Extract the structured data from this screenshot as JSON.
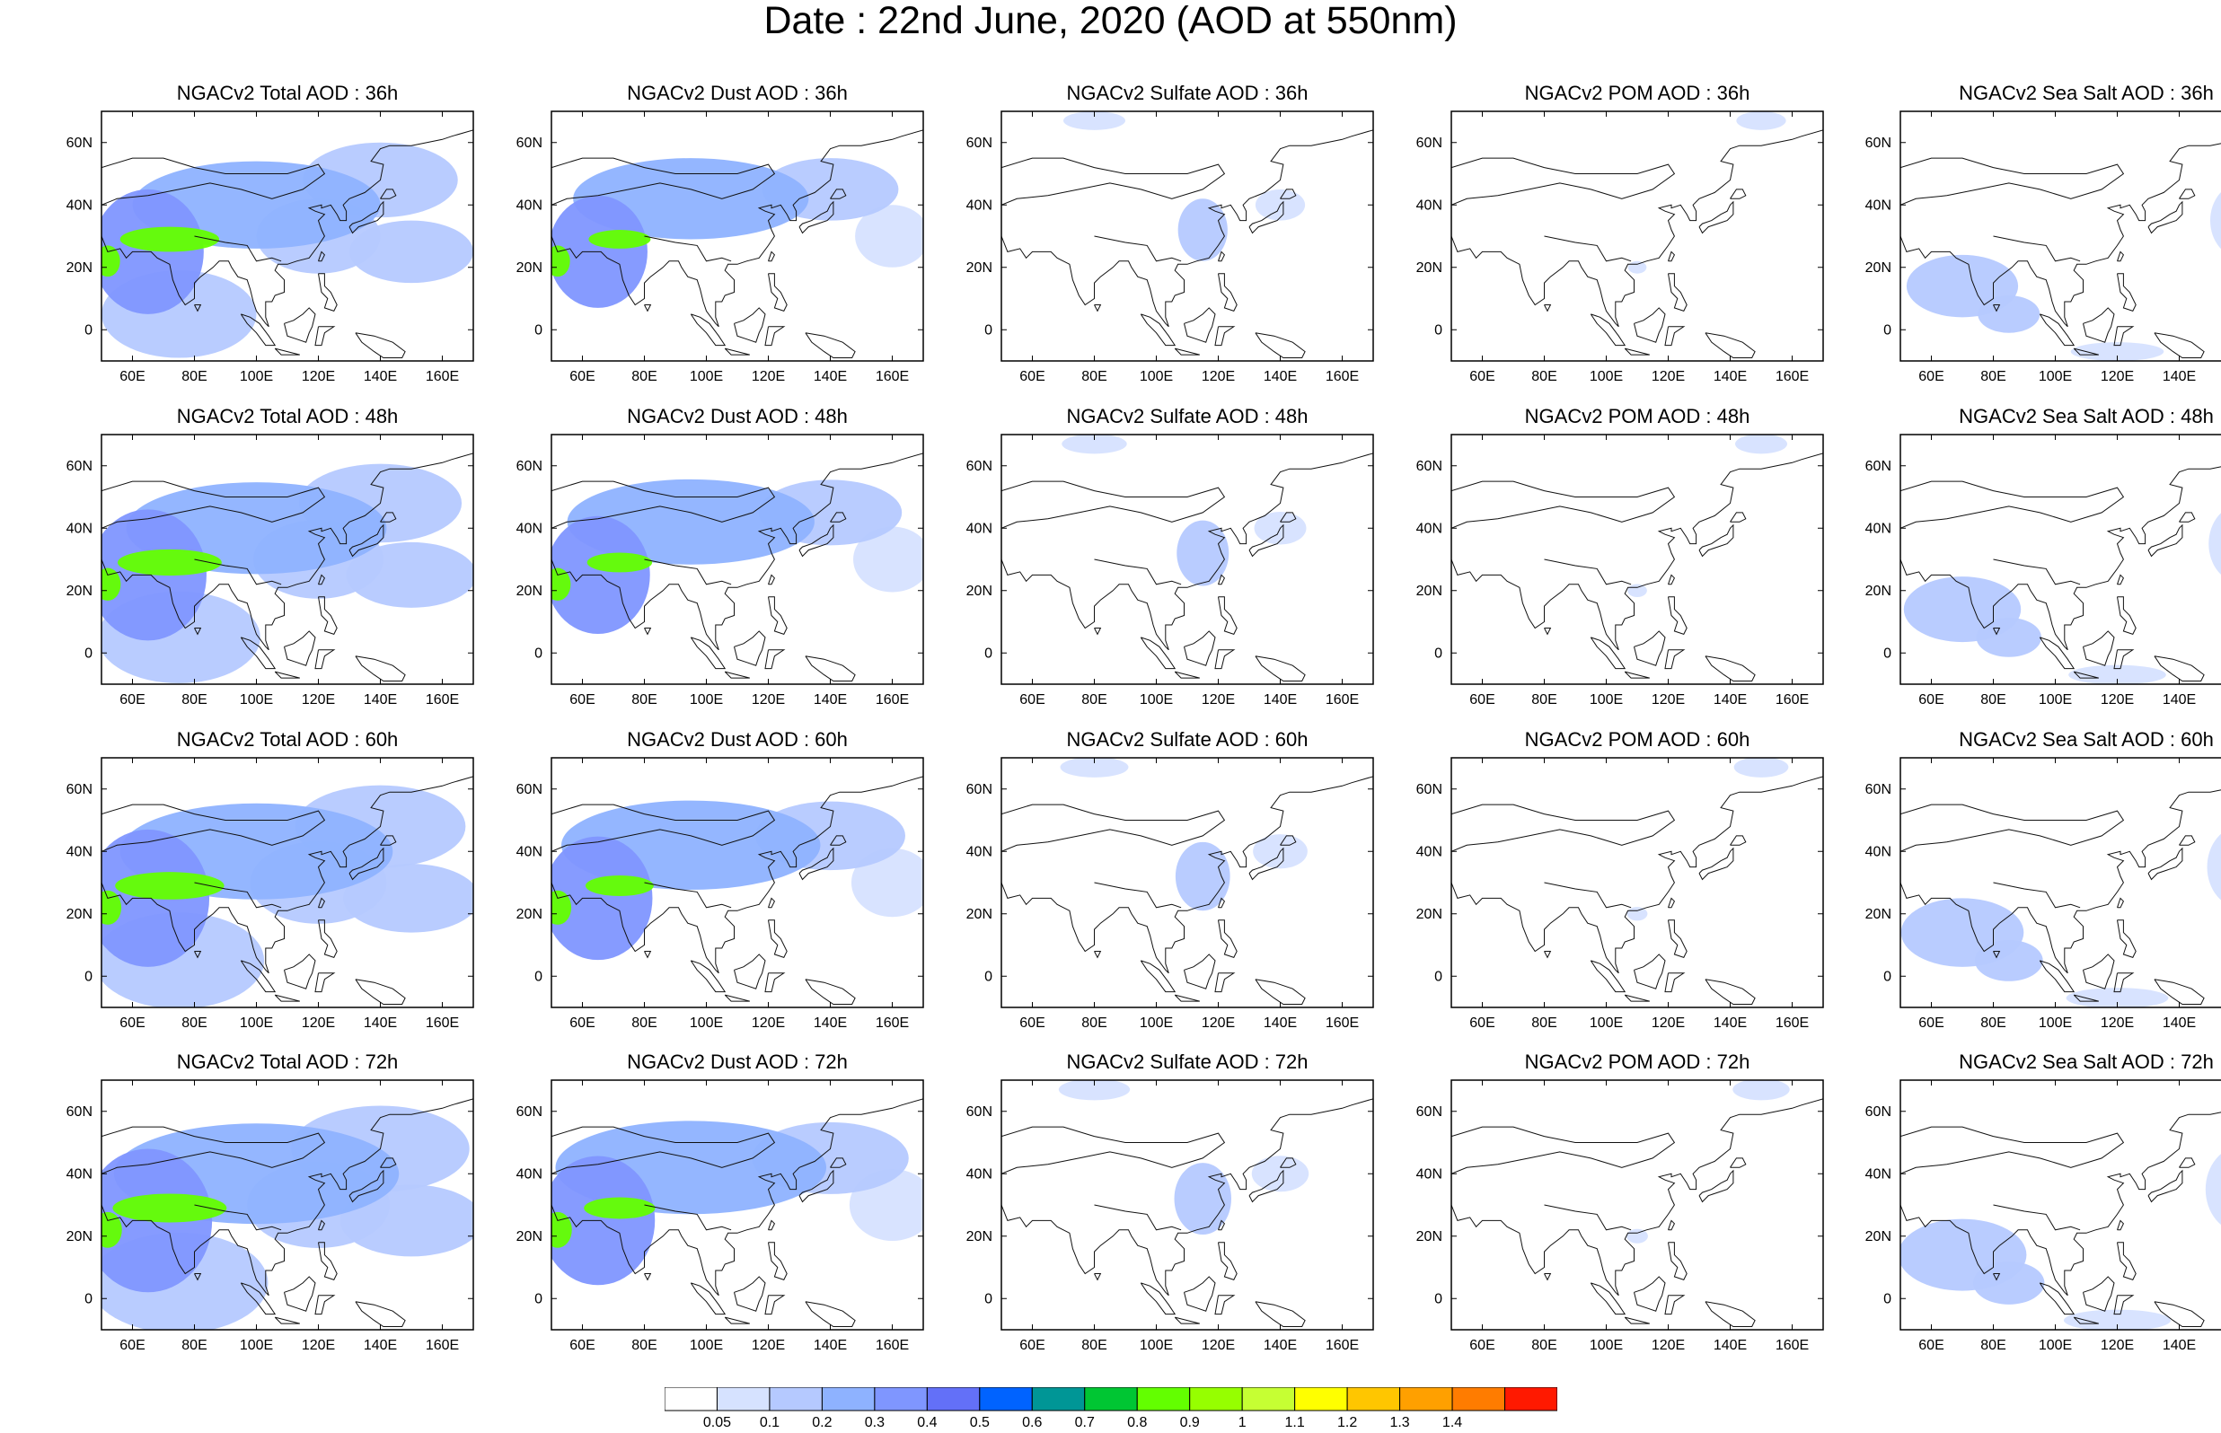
{
  "title": "Date : 22nd June, 2020 (AOD at 550nm)",
  "row_hours": [
    "36h",
    "48h",
    "60h",
    "72h"
  ],
  "panels": [
    {
      "title": "NGACv2 Total AOD : 36h",
      "species": "total",
      "hour": 36
    },
    {
      "title": "NGACv2 Dust AOD : 36h",
      "species": "dust",
      "hour": 36
    },
    {
      "title": "NGACv2 Sulfate AOD : 36h",
      "species": "sulfate",
      "hour": 36
    },
    {
      "title": "NGACv2 POM AOD : 36h",
      "species": "pom",
      "hour": 36
    },
    {
      "title": "NGACv2 Sea Salt AOD : 36h",
      "species": "seasalt",
      "hour": 36
    },
    {
      "title": "NGACv2 Total AOD : 48h",
      "species": "total",
      "hour": 48
    },
    {
      "title": "NGACv2 Dust AOD : 48h",
      "species": "dust",
      "hour": 48
    },
    {
      "title": "NGACv2 Sulfate AOD : 48h",
      "species": "sulfate",
      "hour": 48
    },
    {
      "title": "NGACv2 POM AOD : 48h",
      "species": "pom",
      "hour": 48
    },
    {
      "title": "NGACv2 Sea Salt AOD : 48h",
      "species": "seasalt",
      "hour": 48
    },
    {
      "title": "NGACv2 Total AOD : 60h",
      "species": "total",
      "hour": 60
    },
    {
      "title": "NGACv2 Dust AOD : 60h",
      "species": "dust",
      "hour": 60
    },
    {
      "title": "NGACv2 Sulfate AOD : 60h",
      "species": "sulfate",
      "hour": 60
    },
    {
      "title": "NGACv2 POM AOD : 60h",
      "species": "pom",
      "hour": 60
    },
    {
      "title": "NGACv2 Sea Salt AOD : 60h",
      "species": "seasalt",
      "hour": 60
    },
    {
      "title": "NGACv2 Total AOD : 72h",
      "species": "total",
      "hour": 72
    },
    {
      "title": "NGACv2 Dust AOD : 72h",
      "species": "dust",
      "hour": 72
    },
    {
      "title": "NGACv2 Sulfate AOD : 72h",
      "species": "sulfate",
      "hour": 72
    },
    {
      "title": "NGACv2 POM AOD : 72h",
      "species": "pom",
      "hour": 72
    },
    {
      "title": "NGACv2 Sea Salt  AOD : 72h",
      "species": "seasalt",
      "hour": 72
    }
  ],
  "map": {
    "lon_range": [
      50,
      170
    ],
    "lat_range": [
      -10,
      70
    ],
    "x_ticks": [
      "60E",
      "80E",
      "100E",
      "120E",
      "140E",
      "160E"
    ],
    "x_tick_values": [
      60,
      80,
      100,
      120,
      140,
      160
    ],
    "y_ticks": [
      "60N",
      "40N",
      "20N",
      "0"
    ],
    "y_tick_values": [
      60,
      40,
      20,
      0
    ]
  },
  "colorbar": {
    "labels": [
      "0.05",
      "0.1",
      "0.2",
      "0.3",
      "0.4",
      "0.5",
      "0.6",
      "0.7",
      "0.8",
      "0.9",
      "1",
      "1.1",
      "1.2",
      "1.3",
      "1.4"
    ],
    "colors": [
      "#ffffff",
      "#d6e2ff",
      "#b5c9ff",
      "#8eb2ff",
      "#7f96ff",
      "#6370f8",
      "#0063ff",
      "#009696",
      "#00c633",
      "#63ff00",
      "#96ff00",
      "#c6ff33",
      "#ffff00",
      "#ffc600",
      "#ffa000",
      "#ff7c00",
      "#ff1900"
    ]
  },
  "chart_data": {
    "type": "heatmap",
    "title": "Date : 22nd June, 2020 (AOD at 550nm)",
    "fields": [
      "Total AOD",
      "Dust AOD",
      "Sulfate AOD",
      "POM AOD",
      "Sea Salt AOD"
    ],
    "forecast_hours": [
      36,
      48,
      60,
      72
    ],
    "xlim": [
      50,
      170
    ],
    "ylim": [
      -10,
      70
    ],
    "levels": [
      0.05,
      0.1,
      0.2,
      0.3,
      0.4,
      0.5,
      0.6,
      0.7,
      0.8,
      0.9,
      1,
      1.1,
      1.2,
      1.3,
      1.4
    ],
    "features": {
      "total": [
        {
          "lon": 65,
          "lat": 25,
          "rx": 18,
          "ry": 20,
          "aod": 0.35
        },
        {
          "lon": 100,
          "lat": 40,
          "rx": 40,
          "ry": 14,
          "aod": 0.22
        },
        {
          "lon": 120,
          "lat": 30,
          "rx": 20,
          "ry": 12,
          "aod": 0.18
        },
        {
          "lon": 140,
          "lat": 48,
          "rx": 25,
          "ry": 12,
          "aod": 0.15
        },
        {
          "lon": 150,
          "lat": 25,
          "rx": 20,
          "ry": 10,
          "aod": 0.12
        },
        {
          "lon": 75,
          "lat": 5,
          "rx": 25,
          "ry": 14,
          "aod": 0.13
        },
        {
          "lon": 72,
          "lat": 29,
          "rx": 16,
          "ry": 4,
          "aod": 0.85
        },
        {
          "lon": 52,
          "lat": 22,
          "rx": 4,
          "ry": 5,
          "aod": 0.8
        }
      ],
      "dust": [
        {
          "lon": 65,
          "lat": 25,
          "rx": 16,
          "ry": 18,
          "aod": 0.32
        },
        {
          "lon": 95,
          "lat": 42,
          "rx": 38,
          "ry": 13,
          "aod": 0.2
        },
        {
          "lon": 140,
          "lat": 45,
          "rx": 22,
          "ry": 10,
          "aod": 0.1
        },
        {
          "lon": 160,
          "lat": 30,
          "rx": 12,
          "ry": 10,
          "aod": 0.08
        },
        {
          "lon": 72,
          "lat": 29,
          "rx": 10,
          "ry": 3,
          "aod": 0.82
        },
        {
          "lon": 52,
          "lat": 22,
          "rx": 4,
          "ry": 5,
          "aod": 0.8
        }
      ],
      "sulfate": [
        {
          "lon": 115,
          "lat": 32,
          "rx": 8,
          "ry": 10,
          "aod": 0.12
        },
        {
          "lon": 80,
          "lat": 67,
          "rx": 10,
          "ry": 3,
          "aod": 0.08
        },
        {
          "lon": 140,
          "lat": 40,
          "rx": 8,
          "ry": 5,
          "aod": 0.07
        }
      ],
      "pom": [
        {
          "lon": 150,
          "lat": 67,
          "rx": 8,
          "ry": 3,
          "aod": 0.07
        },
        {
          "lon": 110,
          "lat": 20,
          "rx": 3,
          "ry": 2,
          "aod": 0.06
        }
      ],
      "seasalt": [
        {
          "lon": 70,
          "lat": 14,
          "rx": 18,
          "ry": 10,
          "aod": 0.13
        },
        {
          "lon": 85,
          "lat": 5,
          "rx": 10,
          "ry": 6,
          "aod": 0.1
        },
        {
          "lon": 160,
          "lat": 35,
          "rx": 10,
          "ry": 12,
          "aod": 0.08
        },
        {
          "lon": 120,
          "lat": -7,
          "rx": 15,
          "ry": 3,
          "aod": 0.07
        }
      ]
    }
  }
}
